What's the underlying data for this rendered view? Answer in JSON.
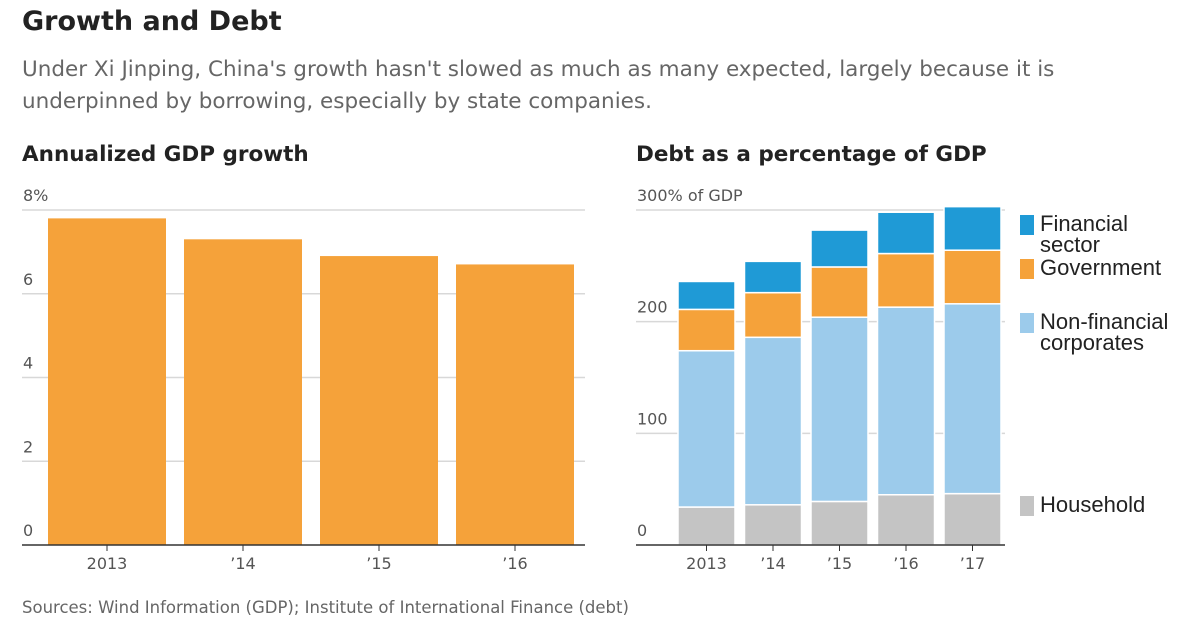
{
  "header": {
    "title": "Growth and Debt",
    "subtitle": "Under Xi Jinping, China's growth hasn't slowed as much as many expected, largely because it is underpinned by borrowing, especially by state companies."
  },
  "footer": {
    "source": "Sources: Wind Information (GDP); Institute of International Finance (debt)"
  },
  "colors": {
    "orange": "#f5a23a",
    "financial": "#1f9ad6",
    "government": "#f5a23a",
    "nonfinancial": "#9ccbeb",
    "household": "#c4c4c4",
    "grid": "#d8d8d8",
    "axis": "#333333"
  },
  "chart_data": [
    {
      "id": "gdp",
      "type": "bar",
      "title": "Annualized GDP growth",
      "categories": [
        "2013",
        "’14",
        "’15",
        "’16"
      ],
      "values": [
        7.8,
        7.3,
        6.9,
        6.7
      ],
      "ylim": [
        0,
        8
      ],
      "yticks": [
        "0",
        "2",
        "4",
        "6",
        "8%"
      ],
      "ytick_values": [
        0,
        2,
        4,
        6,
        8
      ],
      "xlabel": "",
      "ylabel": ""
    },
    {
      "id": "debt",
      "type": "bar",
      "stacked": true,
      "title": "Debt as a percentage of GDP",
      "categories": [
        "2013",
        "’14",
        "’15",
        "’16",
        "’17"
      ],
      "ylim": [
        0,
        300
      ],
      "yticks": [
        "0",
        "100",
        "200",
        "300% of GDP"
      ],
      "ytick_values": [
        0,
        100,
        200,
        300
      ],
      "series": [
        {
          "name": "Household",
          "color_key": "household",
          "values": [
            34,
            36,
            39,
            45,
            46
          ]
        },
        {
          "name": "Non-financial corporates",
          "color_key": "nonfinancial",
          "values": [
            140,
            150,
            165,
            168,
            170
          ]
        },
        {
          "name": "Government",
          "color_key": "government",
          "values": [
            37,
            40,
            45,
            48,
            48
          ]
        },
        {
          "name": "Financial sector",
          "color_key": "financial",
          "values": [
            25,
            28,
            33,
            37,
            39
          ]
        }
      ],
      "legend": [
        {
          "label_lines": [
            "Financial",
            "sector"
          ],
          "color_key": "financial"
        },
        {
          "label_lines": [
            "Government"
          ],
          "color_key": "government"
        },
        {
          "label_lines": [
            "Non-financial",
            "corporates"
          ],
          "color_key": "nonfinancial"
        },
        {
          "label_lines": [
            "Household"
          ],
          "color_key": "household"
        }
      ]
    }
  ]
}
